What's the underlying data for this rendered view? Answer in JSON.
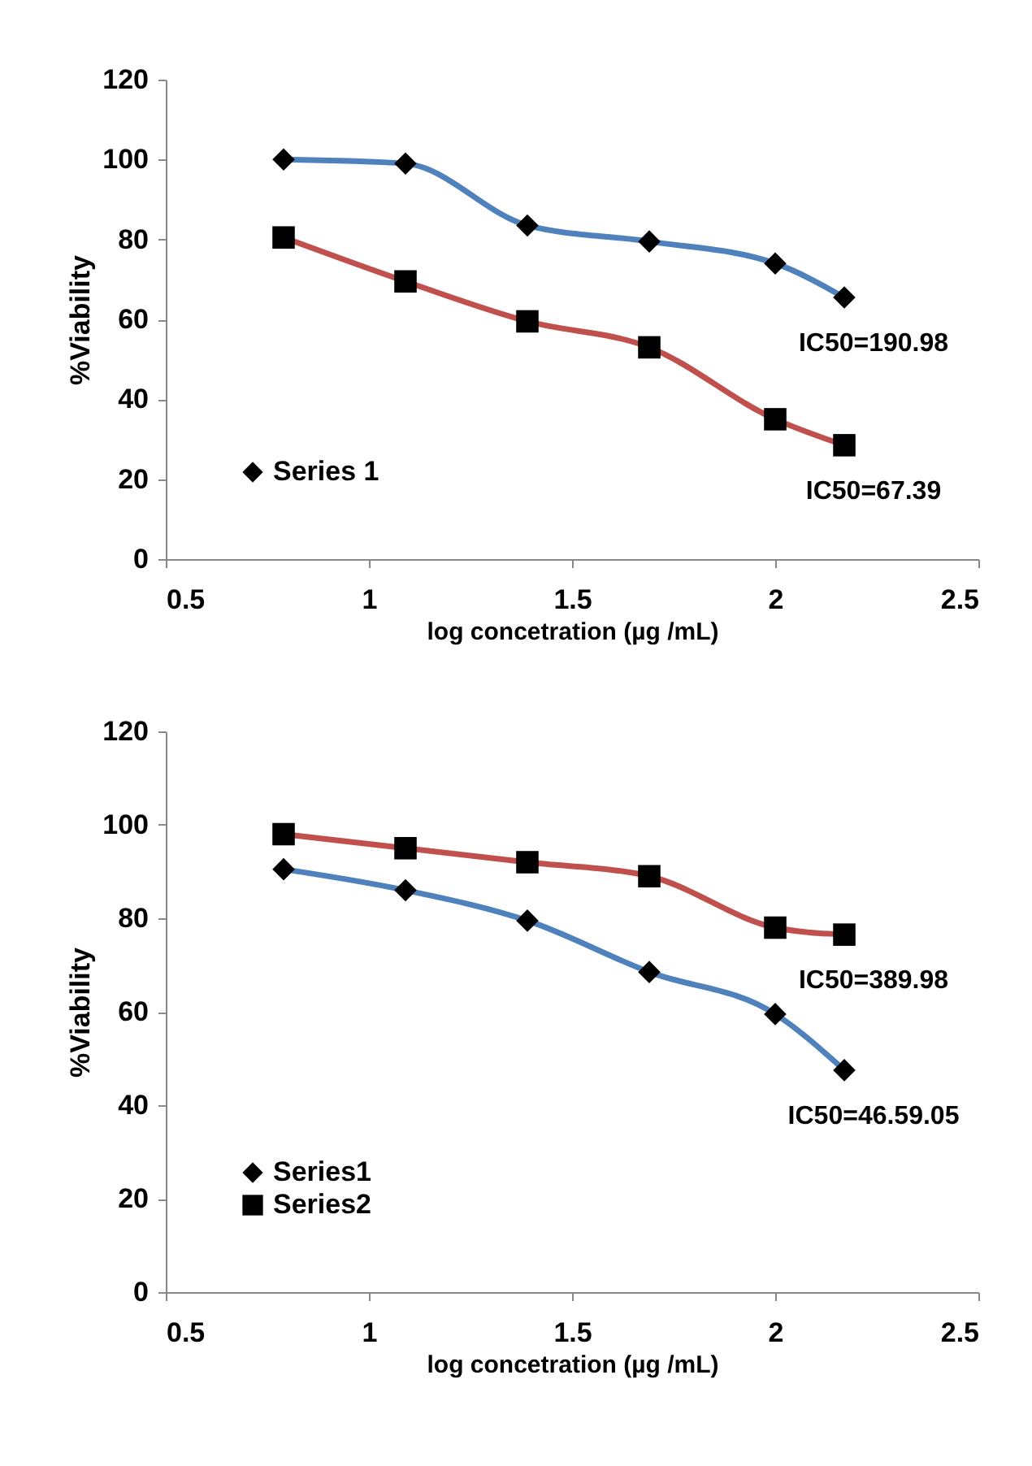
{
  "chart_data": [
    {
      "type": "line",
      "xlabel": "log concetration (µg /mL)",
      "ylabel": "%Viability",
      "x": [
        0.79,
        1.09,
        1.39,
        1.69,
        2.0,
        2.17
      ],
      "xlim": [
        0.5,
        2.5
      ],
      "xticks": [
        0.5,
        1,
        1.5,
        2,
        2.5
      ],
      "ylim": [
        0,
        120
      ],
      "yticks": [
        0,
        20,
        40,
        60,
        80,
        100,
        120
      ],
      "grid": false,
      "legend": "bottom left",
      "line_style": "solid",
      "series": [
        {
          "name": "Series 1",
          "color": "#4f81bd",
          "marker": "diamond",
          "values": [
            100,
            99,
            83.5,
            79.5,
            74,
            65.5
          ]
        },
        {
          "color": "#c0504d",
          "marker": "square",
          "values": [
            80.5,
            69.5,
            59.5,
            53,
            35,
            28.5
          ]
        }
      ],
      "annotations": [
        "IC50=190.98",
        "IC50=67.39"
      ]
    },
    {
      "type": "line",
      "xlabel": "log concetration (µg /mL)",
      "ylabel": "%Viability",
      "x": [
        0.79,
        1.09,
        1.39,
        1.69,
        2.0,
        2.17
      ],
      "xlim": [
        0.5,
        2.5
      ],
      "xticks": [
        0.5,
        1,
        1.5,
        2,
        2.5
      ],
      "ylim": [
        0,
        120
      ],
      "yticks": [
        0,
        20,
        40,
        60,
        80,
        100,
        120
      ],
      "grid": false,
      "legend": "bottom left",
      "line_style": "solid",
      "series": [
        {
          "name": "Series1",
          "color": "#4f81bd",
          "marker": "diamond",
          "values": [
            90.5,
            86,
            79.5,
            68.5,
            59.5,
            47.5
          ]
        },
        {
          "name": "Series2",
          "color": "#c0504d",
          "marker": "square",
          "values": [
            98,
            95,
            92,
            89,
            78,
            76.5
          ]
        }
      ],
      "annotations": [
        "IC50=46.59.05",
        "IC50=389.98"
      ]
    }
  ]
}
